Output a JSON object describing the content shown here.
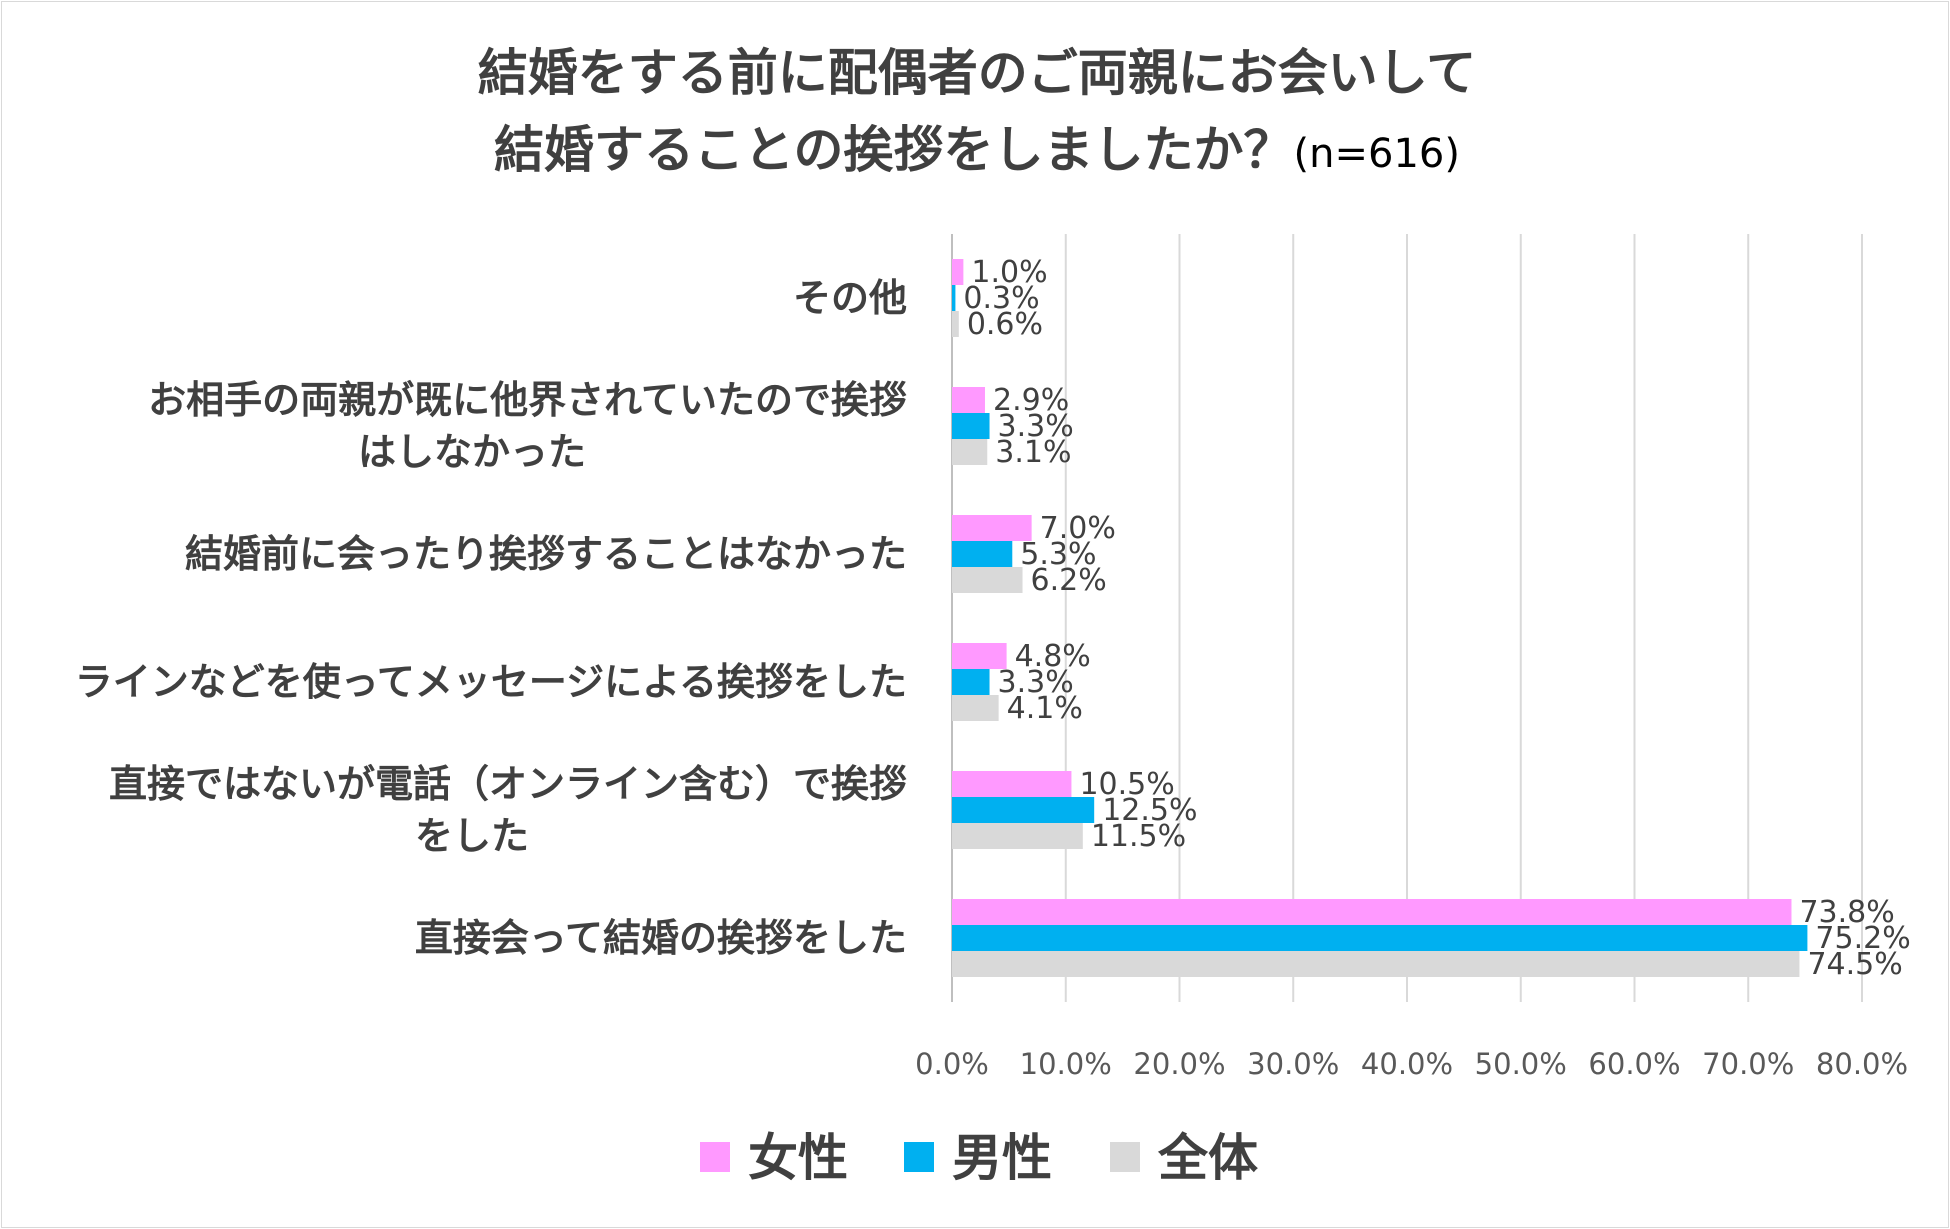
{
  "chart_data": {
    "type": "bar",
    "orientation": "horizontal",
    "title_line1": "結婚をする前に配偶者のご両親にお会いして",
    "title_line2": "結婚することの挨拶をしましたか？",
    "sample_size": "(n=616)",
    "categories": [
      [
        "その他"
      ],
      [
        "お相手の両親が既に他界されていたので挨拶",
        "はしなかった"
      ],
      [
        "結婚前に会ったり挨拶することはなかった"
      ],
      [
        "ラインなどを使ってメッセージによる挨拶をした"
      ],
      [
        "直接ではないが電話（オンライン含む）で挨拶",
        "をした"
      ],
      [
        "直接会って結婚の挨拶をした"
      ]
    ],
    "series": [
      {
        "name": "女性",
        "color": "#ff99ff",
        "values": [
          1.0,
          2.9,
          7.0,
          4.8,
          10.5,
          73.8
        ]
      },
      {
        "name": "男性",
        "color": "#00b0f0",
        "values": [
          0.3,
          3.3,
          5.3,
          3.3,
          12.5,
          75.2
        ]
      },
      {
        "name": "全体",
        "color": "#d9d9d9",
        "values": [
          0.6,
          3.1,
          6.2,
          4.1,
          11.5,
          74.5
        ]
      }
    ],
    "xlim": [
      0,
      80
    ],
    "xticks": [
      0,
      10,
      20,
      30,
      40,
      50,
      60,
      70,
      80
    ],
    "xtick_labels": [
      "0.0%",
      "10.0%",
      "20.0%",
      "30.0%",
      "40.0%",
      "50.0%",
      "60.0%",
      "70.0%",
      "80.0%"
    ],
    "value_suffix": "%",
    "grid": true,
    "legend_position": "bottom"
  }
}
